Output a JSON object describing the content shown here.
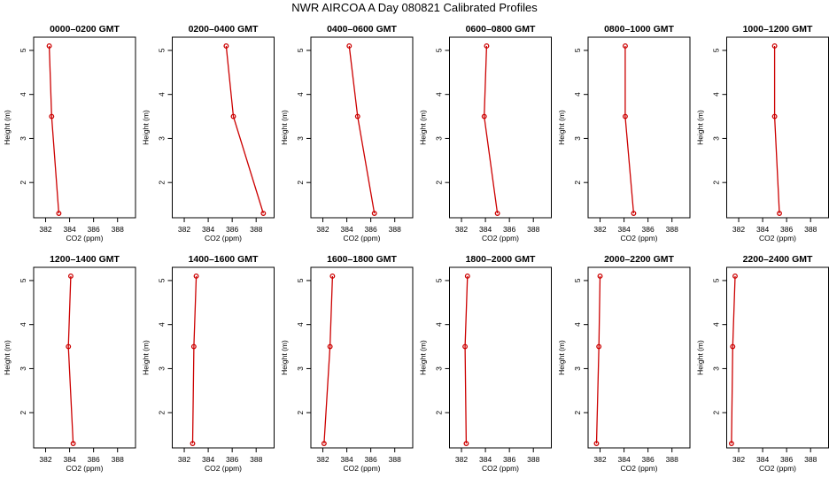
{
  "title": "NWR AIRCOA A  Day 080821  Calibrated Profiles",
  "colors": {
    "line": "#cc0000",
    "marker": "#cc0000",
    "frame": "#000000"
  },
  "chart_data": [
    {
      "type": "line",
      "title": "0000–0200 GMT",
      "xlabel": "CO2 (ppm)",
      "ylabel": "Height (m)",
      "xlim": [
        381,
        389.5
      ],
      "ylim": [
        1.2,
        5.3
      ],
      "xticks": [
        382,
        384,
        386,
        388
      ],
      "yticks": [
        2,
        3,
        4,
        5
      ],
      "x": [
        382.3,
        382.5,
        383.1
      ],
      "y": [
        5.1,
        3.5,
        1.3
      ]
    },
    {
      "type": "line",
      "title": "0200–0400 GMT",
      "xlabel": "CO2 (ppm)",
      "ylabel": "Height (m)",
      "xlim": [
        381,
        389.5
      ],
      "ylim": [
        1.2,
        5.3
      ],
      "xticks": [
        382,
        384,
        386,
        388
      ],
      "yticks": [
        2,
        3,
        4,
        5
      ],
      "x": [
        385.5,
        386.1,
        388.6
      ],
      "y": [
        5.1,
        3.5,
        1.3
      ]
    },
    {
      "type": "line",
      "title": "0400–0600 GMT",
      "xlabel": "CO2 (ppm)",
      "ylabel": "Height (m)",
      "xlim": [
        381,
        389.5
      ],
      "ylim": [
        1.2,
        5.3
      ],
      "xticks": [
        382,
        384,
        386,
        388
      ],
      "yticks": [
        2,
        3,
        4,
        5
      ],
      "x": [
        384.2,
        384.9,
        386.3
      ],
      "y": [
        5.1,
        3.5,
        1.3
      ]
    },
    {
      "type": "line",
      "title": "0600–0800 GMT",
      "xlabel": "CO2 (ppm)",
      "ylabel": "Height (m)",
      "xlim": [
        381,
        389.5
      ],
      "ylim": [
        1.2,
        5.3
      ],
      "xticks": [
        382,
        384,
        386,
        388
      ],
      "yticks": [
        2,
        3,
        4,
        5
      ],
      "x": [
        384.1,
        383.9,
        385.0
      ],
      "y": [
        5.1,
        3.5,
        1.3
      ]
    },
    {
      "type": "line",
      "title": "0800–1000 GMT",
      "xlabel": "CO2 (ppm)",
      "ylabel": "Height (m)",
      "xlim": [
        381,
        389.5
      ],
      "ylim": [
        1.2,
        5.3
      ],
      "xticks": [
        382,
        384,
        386,
        388
      ],
      "yticks": [
        2,
        3,
        4,
        5
      ],
      "x": [
        384.1,
        384.1,
        384.8
      ],
      "y": [
        5.1,
        3.5,
        1.3
      ]
    },
    {
      "type": "line",
      "title": "1000–1200 GMT",
      "xlabel": "CO2 (ppm)",
      "ylabel": "Height (m)",
      "xlim": [
        381,
        389.5
      ],
      "ylim": [
        1.2,
        5.3
      ],
      "xticks": [
        382,
        384,
        386,
        388
      ],
      "yticks": [
        2,
        3,
        4,
        5
      ],
      "x": [
        385.0,
        385.0,
        385.4
      ],
      "y": [
        5.1,
        3.5,
        1.3
      ]
    },
    {
      "type": "line",
      "title": "1200–1400 GMT",
      "xlabel": "CO2 (ppm)",
      "ylabel": "Height (m)",
      "xlim": [
        381,
        389.5
      ],
      "ylim": [
        1.2,
        5.3
      ],
      "xticks": [
        382,
        384,
        386,
        388
      ],
      "yticks": [
        2,
        3,
        4,
        5
      ],
      "x": [
        384.1,
        383.9,
        384.3
      ],
      "y": [
        5.1,
        3.5,
        1.3
      ]
    },
    {
      "type": "line",
      "title": "1400–1600 GMT",
      "xlabel": "CO2 (ppm)",
      "ylabel": "Height (m)",
      "xlim": [
        381,
        389.5
      ],
      "ylim": [
        1.2,
        5.3
      ],
      "xticks": [
        382,
        384,
        386,
        388
      ],
      "yticks": [
        2,
        3,
        4,
        5
      ],
      "x": [
        383.0,
        382.8,
        382.7
      ],
      "y": [
        5.1,
        3.5,
        1.3
      ]
    },
    {
      "type": "line",
      "title": "1600–1800 GMT",
      "xlabel": "CO2 (ppm)",
      "ylabel": "Height (m)",
      "xlim": [
        381,
        389.5
      ],
      "ylim": [
        1.2,
        5.3
      ],
      "xticks": [
        382,
        384,
        386,
        388
      ],
      "yticks": [
        2,
        3,
        4,
        5
      ],
      "x": [
        382.8,
        382.6,
        382.1
      ],
      "y": [
        5.1,
        3.5,
        1.3
      ]
    },
    {
      "type": "line",
      "title": "1800–2000 GMT",
      "xlabel": "CO2 (ppm)",
      "ylabel": "Height (m)",
      "xlim": [
        381,
        389.5
      ],
      "ylim": [
        1.2,
        5.3
      ],
      "xticks": [
        382,
        384,
        386,
        388
      ],
      "yticks": [
        2,
        3,
        4,
        5
      ],
      "x": [
        382.5,
        382.3,
        382.4
      ],
      "y": [
        5.1,
        3.5,
        1.3
      ]
    },
    {
      "type": "line",
      "title": "2000–2200 GMT",
      "xlabel": "CO2 (ppm)",
      "ylabel": "Height (m)",
      "xlim": [
        381,
        389.5
      ],
      "ylim": [
        1.2,
        5.3
      ],
      "xticks": [
        382,
        384,
        386,
        388
      ],
      "yticks": [
        2,
        3,
        4,
        5
      ],
      "x": [
        382.0,
        381.9,
        381.7
      ],
      "y": [
        5.1,
        3.5,
        1.3
      ]
    },
    {
      "type": "line",
      "title": "2200–2400 GMT",
      "xlabel": "CO2 (ppm)",
      "ylabel": "Height (m)",
      "xlim": [
        381,
        389.5
      ],
      "ylim": [
        1.2,
        5.3
      ],
      "xticks": [
        382,
        384,
        386,
        388
      ],
      "yticks": [
        2,
        3,
        4,
        5
      ],
      "x": [
        381.7,
        381.5,
        381.4
      ],
      "y": [
        5.1,
        3.5,
        1.3
      ]
    }
  ]
}
